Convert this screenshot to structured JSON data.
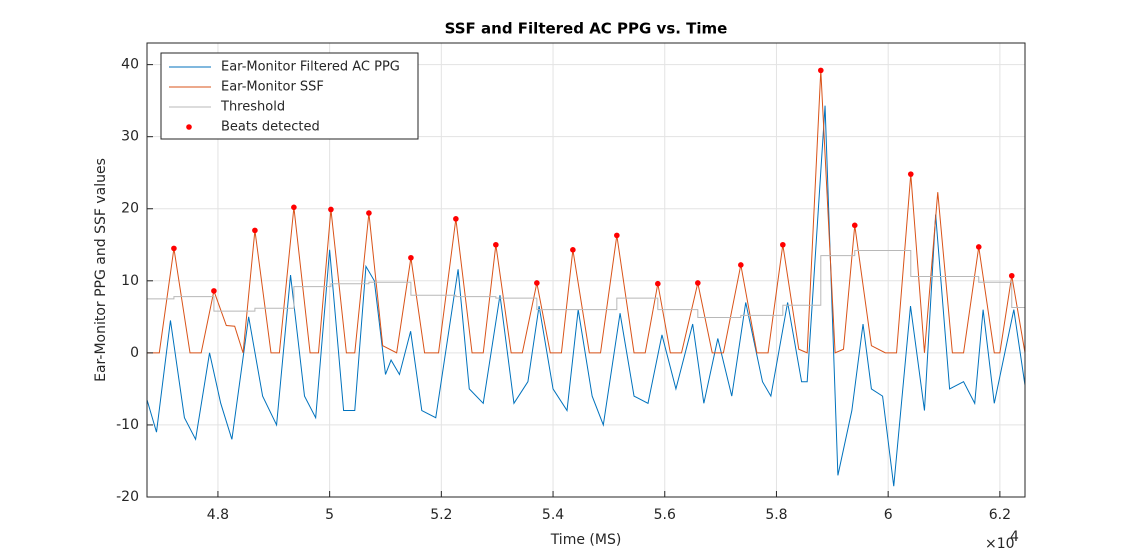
{
  "chart_data": {
    "type": "line",
    "title": "SSF and Filtered AC PPG vs. Time",
    "x_label": "Time (MS)",
    "y_label": "Ear-Monitor PPG and SSF values",
    "x_exponent": {
      "base": "×10",
      "power": "4"
    },
    "xlim": [
      46730,
      62450
    ],
    "ylim": [
      -20,
      43
    ],
    "xticks": [
      {
        "value": 48000,
        "label": "4.8"
      },
      {
        "value": 50000,
        "label": "5"
      },
      {
        "value": 52000,
        "label": "5.2"
      },
      {
        "value": 54000,
        "label": "5.4"
      },
      {
        "value": 56000,
        "label": "5.6"
      },
      {
        "value": 58000,
        "label": "5.8"
      },
      {
        "value": 60000,
        "label": "6"
      },
      {
        "value": 62000,
        "label": "6.2"
      }
    ],
    "yticks": [
      -20,
      -10,
      0,
      10,
      20,
      30,
      40
    ],
    "grid": true,
    "legend": "upper-left",
    "series": [
      {
        "name": "Ear-Monitor Filtered AC PPG",
        "color": "#0072BD",
        "mode": "lines",
        "x": [
          46730,
          46900,
          47150,
          47400,
          47600,
          47850,
          48050,
          48250,
          48550,
          48800,
          49050,
          49300,
          49550,
          49750,
          50000,
          50250,
          50450,
          50650,
          50800,
          51000,
          51100,
          51250,
          51450,
          51650,
          51900,
          52300,
          52500,
          52750,
          53050,
          53300,
          53550,
          53750,
          54000,
          54250,
          54450,
          54700,
          54900,
          55200,
          55450,
          55700,
          55950,
          56200,
          56500,
          56700,
          56950,
          57200,
          57450,
          57750,
          57900,
          58200,
          58450,
          58550,
          58870,
          59100,
          59350,
          59550,
          59700,
          59900,
          60100,
          60400,
          60650,
          60850,
          61100,
          61350,
          61550,
          61700,
          61900,
          62250,
          62450
        ],
        "values": [
          -6.5,
          -11,
          4.5,
          -9,
          -12,
          0,
          -7,
          -12,
          5,
          -6,
          -10,
          10.8,
          -6,
          -9,
          14.3,
          -8,
          -8,
          12,
          10,
          -3,
          -1,
          -3,
          3,
          -8,
          -9,
          11.6,
          -5,
          -7,
          8,
          -7,
          -4,
          6.5,
          -5,
          -8,
          6,
          -6,
          -10,
          5.5,
          -6,
          -7,
          2.5,
          -5,
          4,
          -7,
          2,
          -6,
          7,
          -4,
          -6,
          7,
          -4,
          -4,
          34.3,
          -17,
          -8,
          4,
          -5,
          -6,
          -18.5,
          6.5,
          -8,
          19.2,
          -5,
          -4,
          -7,
          6,
          -7,
          6,
          -4.5
        ]
      },
      {
        "name": "Ear-Monitor SSF",
        "color": "#D95319",
        "mode": "lines",
        "x": [
          46730,
          46950,
          47212,
          47500,
          47700,
          47928,
          48150,
          48300,
          48450,
          48662,
          48950,
          49100,
          49360,
          49650,
          49800,
          50023,
          50300,
          50450,
          50703,
          50950,
          51200,
          51455,
          51700,
          51950,
          52260,
          52550,
          52750,
          52976,
          53250,
          53450,
          53710,
          53950,
          54150,
          54355,
          54650,
          54850,
          55142,
          55450,
          55650,
          55876,
          56100,
          56300,
          56592,
          56850,
          57050,
          57362,
          57650,
          57850,
          58114,
          58400,
          58550,
          58794,
          59050,
          59200,
          59402,
          59700,
          59950,
          60150,
          60405,
          60650,
          60888,
          61150,
          61350,
          61622,
          61900,
          62000,
          62213,
          62450
        ],
        "values": [
          0,
          0,
          14.5,
          0,
          0,
          8.6,
          3.8,
          3.7,
          0,
          17.0,
          0,
          0,
          20.2,
          0,
          0,
          19.9,
          0,
          0,
          19.4,
          1,
          0,
          13.2,
          0,
          0,
          18.6,
          0,
          0,
          15.0,
          0,
          0,
          9.7,
          0,
          0,
          14.3,
          0,
          0,
          16.3,
          0,
          0,
          9.6,
          0,
          0,
          9.7,
          0,
          0,
          12.2,
          0,
          0,
          15.0,
          0.5,
          0,
          39.2,
          0,
          0.5,
          17.7,
          1,
          0,
          0,
          24.8,
          0,
          22.3,
          0,
          0,
          14.7,
          0,
          0,
          10.7,
          0
        ]
      },
      {
        "name": "Threshold",
        "color": "#b8b8b8",
        "mode": "steps",
        "x": [
          46730,
          47212,
          47928,
          48662,
          49360,
          50023,
          50703,
          51455,
          52260,
          52976,
          53710,
          54355,
          55142,
          55876,
          56592,
          57362,
          58114,
          58794,
          59402,
          60405,
          61622,
          62213,
          62450
        ],
        "values": [
          7.5,
          7.8,
          5.8,
          6.2,
          9.2,
          9.6,
          9.8,
          8.0,
          7.8,
          7.6,
          6.0,
          6.0,
          7.6,
          6.0,
          4.9,
          5.2,
          6.6,
          13.5,
          14.2,
          10.6,
          9.8,
          6.3,
          6.3
        ]
      },
      {
        "name": "Beats detected",
        "color": "#FF0000",
        "mode": "markers",
        "x": [
          47212,
          47928,
          48662,
          49360,
          50023,
          50703,
          51455,
          52260,
          52976,
          53710,
          54355,
          55142,
          55876,
          56592,
          57362,
          58114,
          58794,
          59402,
          60405,
          61622,
          62213
        ],
        "values": [
          14.5,
          8.6,
          17.0,
          20.2,
          19.9,
          19.4,
          13.2,
          18.6,
          15.0,
          9.7,
          14.3,
          16.3,
          9.6,
          9.7,
          12.2,
          15.0,
          39.2,
          17.7,
          24.8,
          14.7,
          10.7
        ]
      }
    ]
  }
}
